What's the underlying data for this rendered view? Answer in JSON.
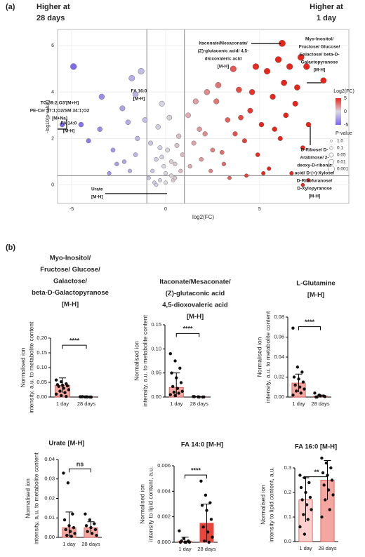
{
  "panel_a_label": "(a)",
  "panel_b_label": "(b)",
  "header_left": [
    "Higher at",
    "28 days"
  ],
  "header_right": [
    "Higher at",
    "1 day"
  ],
  "chart_data": [
    {
      "type": "scatter",
      "xlabel": "log2(FC)",
      "ylabel": "-log10(p-value)",
      "xlim": [
        -5.75,
        9.75
      ],
      "ylim": [
        -0.8,
        6.7
      ],
      "xticks": [
        -5,
        0,
        5
      ],
      "yticks": [
        0,
        2,
        4,
        6
      ],
      "grid": true,
      "vlines": [
        -1,
        1
      ],
      "hline": 0.4,
      "colorscale": {
        "title": "Log2(FC)",
        "low": "#7b68ee",
        "mid": "#d9d9e2",
        "high": "#e8251a",
        "ticks": [
          5,
          0,
          -5
        ]
      },
      "size_legend": {
        "title": "P-value",
        "ticks": [
          {
            "value": 1,
            "label": "1.0"
          },
          0.1,
          0.05,
          0.01,
          0.001
        ]
      },
      "x": [
        -4.9,
        -3.4,
        -5.5,
        -4.5,
        -4.1,
        -3.5,
        -2.8,
        -2.3,
        -2.0,
        -1.8,
        -1.6,
        -1.3,
        -1.5,
        -1.1,
        -2.6,
        -3.0,
        -2.2,
        -1.9,
        -1.6,
        -0.9,
        -0.7,
        -0.5,
        -0.3,
        -0.1,
        0.1,
        0.3,
        0.5,
        0.7,
        0.9,
        -0.8,
        -0.6,
        -0.4,
        -0.2,
        0,
        0.2,
        0.4,
        0.6,
        0.8,
        -0.5,
        0,
        0.5,
        -0.3,
        0.3,
        -0.2,
        1.2,
        1.5,
        1.8,
        2.1,
        2.4,
        2.7,
        3.0,
        3.3,
        3.6,
        3.9,
        4.2,
        4.5,
        4.8,
        5.1,
        5.4,
        5.7,
        6.0,
        6.3,
        6.6,
        6.9,
        7.2,
        7.5,
        1.3,
        1.9,
        2.5,
        3.1,
        3.7,
        4.3,
        4.9,
        5.5,
        6.1,
        6.7,
        7.3,
        1.6,
        2.2,
        2.8,
        3.4,
        4.0,
        4.6,
        5.2,
        5.8,
        6.4,
        7.0,
        7.6,
        6.2,
        8.4,
        7.6,
        7.3
      ],
      "values": [
        5.1,
        3.8,
        2.6,
        2.6,
        1.9,
        2.4,
        1.5,
        3.3,
        2.7,
        4.6,
        3.9,
        4.9,
        2.0,
        2.8,
        0.9,
        0.5,
        1.0,
        0.6,
        1.3,
        0.3,
        0.6,
        1.1,
        0.2,
        0.8,
        1.5,
        0.4,
        0.9,
        2.1,
        1.3,
        1.8,
        0.1,
        2.5,
        1.2,
        0.5,
        2.9,
        0.2,
        1.7,
        0.6,
        0.0,
        0.1,
        0.3,
        1.6,
        1.0,
        3.5,
        3.0,
        1.8,
        2.4,
        2.2,
        0.6,
        3.6,
        1.4,
        2.8,
        5.0,
        4.1,
        1.9,
        3.2,
        5.1,
        2.6,
        4.9,
        3.8,
        5.4,
        4.4,
        5.1,
        3.5,
        5.5,
        5.1,
        0.8,
        1.1,
        1.5,
        0.9,
        2.2,
        0.4,
        1.3,
        0.7,
        2.0,
        0.5,
        1.6,
        3.6,
        4.0,
        4.3,
        0.3,
        2.9,
        4.0,
        0.5,
        2.4,
        3.0,
        4.2,
        0.2,
        6.1,
        4.5,
        2.6,
        0.0
      ],
      "annotations": [
        {
          "lines": [
            "Itaconate/Mesaconate/",
            "(Z)-glutaconic acid/ 4,5-",
            "dioxovaleric acid",
            "[M-H]"
          ]
        },
        {
          "lines": [
            "Myo-Inositol/",
            "Fructose/ Glucose/",
            "Galactose/ beta-D-",
            "Galactopyranose",
            "[M-H]"
          ]
        },
        {
          "lines": [
            "TG 39:2;O3'[M+H]",
            "PE-Cer 37:1;O2/SM 34:1;O2",
            "[M+Na]"
          ]
        },
        {
          "lines": [
            "FA 14:0",
            "[M-H]"
          ]
        },
        {
          "lines": [
            "FA 16:0",
            "[M-H]"
          ]
        },
        {
          "lines": [
            "D-Ribose/ D-",
            "Arabinose/ 2-",
            "deoxy-D-ribonic",
            "acid/ D-(+)-Xylose/",
            "D-Ribofuranose/",
            "D-Xylopyranose",
            "[M-H]"
          ]
        },
        {
          "lines": [
            "Urate",
            "[M-H]"
          ]
        }
      ]
    },
    {
      "type": "bar",
      "title_lines": [
        "Myo-Inositol/",
        "Fructose/ Glucose/",
        "Galactose/",
        "beta-D-Galactopyranose",
        "[M-H]"
      ],
      "ylabel_lines": [
        "Normalised ion",
        "intensity, a.u. to metabolite content"
      ],
      "categories": [
        "1 day",
        "28 days"
      ],
      "ylim": [
        0,
        0.2
      ],
      "yticks": [
        {
          "value": 0,
          "label": "0.00"
        },
        {
          "value": 0.05,
          "label": "0.05"
        },
        {
          "value": 0.1,
          "label": "0.10"
        },
        {
          "value": 0.15,
          "label": "0.15"
        },
        {
          "value": 0.2,
          "label": "0.20"
        }
      ],
      "values": [
        0.04,
        0.001
      ],
      "errors": [
        0.025,
        0.001
      ],
      "significance": "****",
      "colors": [
        "#f4a6a0",
        "#f4a6a0"
      ],
      "edge": "#d9534f",
      "points": [
        [
          0.058,
          0.052,
          0.045,
          0.042,
          0.04,
          0.038,
          0.036,
          0.03,
          0.025,
          0.02,
          0.015,
          0.01,
          0.005,
          0.002
        ],
        [
          0.001,
          0.0005,
          0,
          0.001,
          0.0008,
          0,
          0.0012,
          0.0003
        ]
      ]
    },
    {
      "type": "bar",
      "title_lines": [
        "Itaconate/Mesaconate/",
        "(Z)-glutaconic acid",
        "4,5-dioxovaleric acid",
        "[M-H]"
      ],
      "ylabel_lines": [
        "Normalised ion",
        "intensity, a.u. to metabolite content"
      ],
      "categories": [
        "1 day",
        "28 days"
      ],
      "ylim": [
        0,
        0.15
      ],
      "yticks": [
        {
          "value": 0,
          "label": "0.00"
        },
        {
          "value": 0.05,
          "label": "0.05"
        },
        {
          "value": 0.1,
          "label": "0.10"
        },
        {
          "value": 0.15,
          "label": "0.15"
        }
      ],
      "values": [
        0.02,
        0.0005
      ],
      "errors": [
        0.03,
        0.0005
      ],
      "significance": "****",
      "colors": [
        "#f4a6a0",
        "#f4a6a0"
      ],
      "edge": "#d9534f",
      "points": [
        [
          0.09,
          0.075,
          0.06,
          0.05,
          0.04,
          0.03,
          0.022,
          0.018,
          0.012,
          0.01,
          0.008,
          0.005,
          0.003
        ],
        [
          0.001,
          0.0005,
          0,
          0.0008,
          0,
          0.0003
        ]
      ]
    },
    {
      "type": "bar",
      "title_lines": [
        "L-Glutamine",
        "[M-H]"
      ],
      "ylabel_lines": [
        "Normalised ion",
        "intensity, a.u. to metabolite content"
      ],
      "categories": [
        "1 day",
        "28 days"
      ],
      "ylim": [
        0,
        0.08
      ],
      "yticks": [
        {
          "value": 0,
          "label": "0.00"
        },
        {
          "value": 0.02,
          "label": "0.02"
        },
        {
          "value": 0.04,
          "label": "0.04"
        },
        {
          "value": 0.06,
          "label": "0.06"
        },
        {
          "value": 0.08,
          "label": "0.08"
        }
      ],
      "values": [
        0.014,
        0.001
      ],
      "errors": [
        0.009,
        0.001
      ],
      "significance": "****",
      "colors": [
        "#f4a6a0",
        "#f4a6a0"
      ],
      "edge": "#d9534f",
      "points": [
        [
          0.069,
          0.03,
          0.025,
          0.02,
          0.018,
          0.015,
          0.012,
          0.01,
          0.008,
          0.006,
          0.004,
          0.002
        ],
        [
          0.004,
          0.002,
          0.001,
          0,
          0.001,
          0.0005,
          0
        ]
      ]
    },
    {
      "type": "bar",
      "title_lines": [
        "Urate [M-H]"
      ],
      "ylabel_lines": [
        "Normalised ion",
        "intensity, a.u. to metabolite content"
      ],
      "categories": [
        "1 day",
        "28 days"
      ],
      "ylim": [
        0,
        0.04
      ],
      "yticks": [
        {
          "value": 0,
          "label": "0.00"
        },
        {
          "value": 0.01,
          "label": "0.01"
        },
        {
          "value": 0.02,
          "label": "0.02"
        },
        {
          "value": 0.03,
          "label": "0.03"
        },
        {
          "value": 0.04,
          "label": "0.04"
        }
      ],
      "values": [
        0.005,
        0.005
      ],
      "errors": [
        0.008,
        0.003
      ],
      "significance": "ns",
      "colors": [
        "#f4a6a0",
        "#f4a6a0"
      ],
      "edge": "#d9534f",
      "points": [
        [
          0.033,
          0.028,
          0.012,
          0.009,
          0.006,
          0.005,
          0.004,
          0.003,
          0.002,
          0.001,
          0.0005
        ],
        [
          0.012,
          0.009,
          0.007,
          0.006,
          0.005,
          0.004,
          0.003,
          0.002,
          0.001
        ]
      ]
    },
    {
      "type": "bar",
      "title_lines": [
        "FA 14:0 [M-H]"
      ],
      "ylabel_lines": [
        "Normalised ion",
        "intensity to lipid content, a.u."
      ],
      "categories": [
        "1 day",
        "28 days"
      ],
      "ylim": [
        0,
        0.006
      ],
      "yticks": [
        {
          "value": 0,
          "label": "0.000"
        },
        {
          "value": 0.002,
          "label": "0.002"
        },
        {
          "value": 0.004,
          "label": "0.004"
        },
        {
          "value": 0.006,
          "label": "0.006"
        }
      ],
      "values": [
        0.0001,
        0.0015
      ],
      "errors": [
        0.0003,
        0.0015
      ],
      "significance": "****",
      "colors": [
        "#f4a6a0",
        "#e8453c"
      ],
      "edge": "#d9534f",
      "points": [
        [
          0.0009,
          0.0003,
          0.0001,
          0,
          0,
          0,
          0.0001,
          0
        ],
        [
          0.0048,
          0.0037,
          0.0031,
          0.0029,
          0.0025,
          0.0018,
          0.0012,
          0.0008,
          0.0004,
          0.0001,
          0
        ]
      ]
    },
    {
      "type": "bar",
      "title_lines": [
        "FA 16:0 [M-H]"
      ],
      "ylabel_lines": [
        "Normalised ion",
        "intensity to lipid content, a.u."
      ],
      "categories": [
        "1 day",
        "28 days"
      ],
      "ylim": [
        0,
        0.3
      ],
      "yticks": [
        {
          "value": 0,
          "label": "0.0"
        },
        0.1,
        0.2,
        0.3
      ],
      "values": [
        0.17,
        0.25
      ],
      "errors": [
        0.09,
        0.08
      ],
      "significance": "**",
      "colors": [
        "#fbd0cc",
        "#f4a6a0"
      ],
      "edge": "#d9534f",
      "points": [
        [
          0.27,
          0.26,
          0.24,
          0.22,
          0.2,
          0.18,
          0.17,
          0.15,
          0.13,
          0.11,
          0.09,
          0.06,
          0.03
        ],
        [
          0.34,
          0.32,
          0.3,
          0.28,
          0.27,
          0.25,
          0.23,
          0.21,
          0.19,
          0.17,
          0.13,
          0.1
        ]
      ]
    }
  ]
}
